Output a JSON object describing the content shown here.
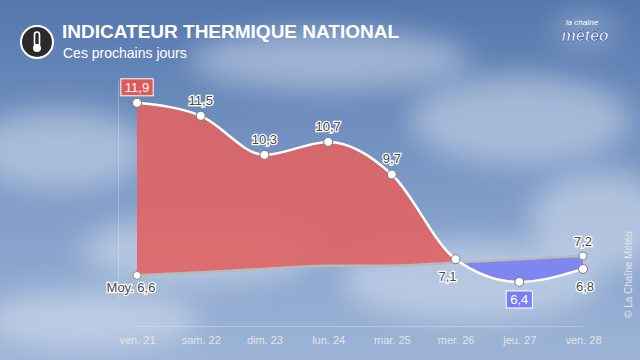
{
  "chart_data": {
    "type": "line",
    "title": "INDICATEUR THERMIQUE NATIONAL",
    "subtitle": "Ces prochains jours",
    "categories": [
      "ven. 21",
      "sam. 22",
      "dim. 23",
      "lun. 24",
      "mar. 25",
      "mer. 26",
      "jeu. 27",
      "ven. 28"
    ],
    "series": [
      {
        "color": "#e06464",
        "values": [
          11.9,
          11.5,
          10.3,
          10.7,
          9.7,
          7.1,
          6.4,
          6.8
        ],
        "value_labels": [
          "11,9",
          "11,5",
          "10,3",
          "10,7",
          "9,7",
          "7,1",
          "6,4",
          "6,8"
        ]
      },
      {
        "color": "#b9b9b9",
        "values": [
          6.6,
          6.7,
          6.8,
          6.9,
          6.9,
          7.0,
          7.1,
          7.2
        ],
        "value_labels": [
          "Moy. 6,6",
          null,
          null,
          null,
          null,
          null,
          null,
          "7,2"
        ]
      }
    ],
    "ylim": [
      5.8,
      12.6
    ],
    "data_labels": true,
    "tick_labels": "x",
    "annotations": [
      "la chaîne",
      "météo",
      "© La Chaîne Météo"
    ]
  }
}
